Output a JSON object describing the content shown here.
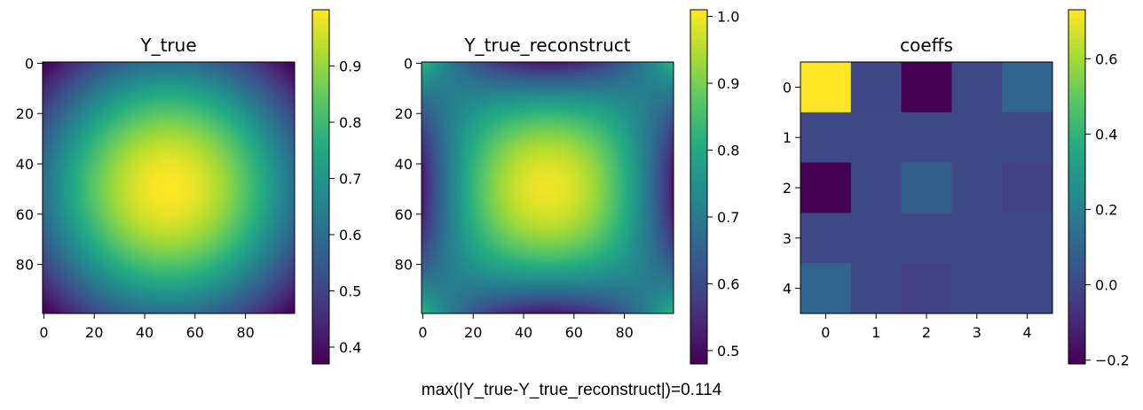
{
  "figure": {
    "caption": "max(|Y_true-Y_true_reconstruct|)=0.114"
  },
  "chart_data": [
    {
      "type": "heatmap",
      "title": "Y_true",
      "xlabel": "",
      "ylabel": "",
      "grid_size": [
        100,
        100
      ],
      "function": "radial bump, maximum 1.0 at center (49.5, 49.5), minimum about 0.37 at the corners",
      "x_ticks": [
        "0",
        "20",
        "40",
        "60",
        "80"
      ],
      "y_ticks": [
        "0",
        "20",
        "40",
        "60",
        "80"
      ],
      "clim": [
        0.37,
        1.0
      ],
      "colorbar_ticks": [
        "0.4",
        "0.5",
        "0.6",
        "0.7",
        "0.8",
        "0.9"
      ],
      "colormap": "viridis",
      "grid": false
    },
    {
      "type": "heatmap",
      "title": "Y_true_reconstruct",
      "xlabel": "",
      "ylabel": "",
      "grid_size": [
        100,
        100
      ],
      "function": "polynomial reconstruction from the 5x5 coeffs, maximum about 1.0 at center, about 0.48 at the corners",
      "x_ticks": [
        "0",
        "20",
        "40",
        "60",
        "80"
      ],
      "y_ticks": [
        "0",
        "20",
        "40",
        "60",
        "80"
      ],
      "clim": [
        0.48,
        1.01
      ],
      "colorbar_ticks": [
        "0.5",
        "0.6",
        "0.7",
        "0.8",
        "0.9",
        "1.0"
      ],
      "colormap": "viridis",
      "grid": false
    },
    {
      "type": "heatmap",
      "title": "coeffs",
      "xlabel": "",
      "ylabel": "",
      "x_ticks": [
        "0",
        "1",
        "2",
        "3",
        "4"
      ],
      "y_ticks": [
        "0",
        "1",
        "2",
        "3",
        "4"
      ],
      "values": [
        [
          0.73,
          -0.01,
          -0.21,
          0.0,
          0.1
        ],
        [
          0.0,
          0.0,
          0.0,
          0.0,
          0.0
        ],
        [
          -0.21,
          0.0,
          0.08,
          0.0,
          -0.03
        ],
        [
          0.0,
          0.0,
          0.0,
          0.0,
          0.0
        ],
        [
          0.1,
          0.0,
          -0.03,
          0.0,
          0.0
        ]
      ],
      "clim": [
        -0.21,
        0.73
      ],
      "colorbar_ticks": [
        "−0.2",
        "0.0",
        "0.2",
        "0.4",
        "0.6"
      ],
      "colormap": "viridis",
      "grid": false
    }
  ]
}
